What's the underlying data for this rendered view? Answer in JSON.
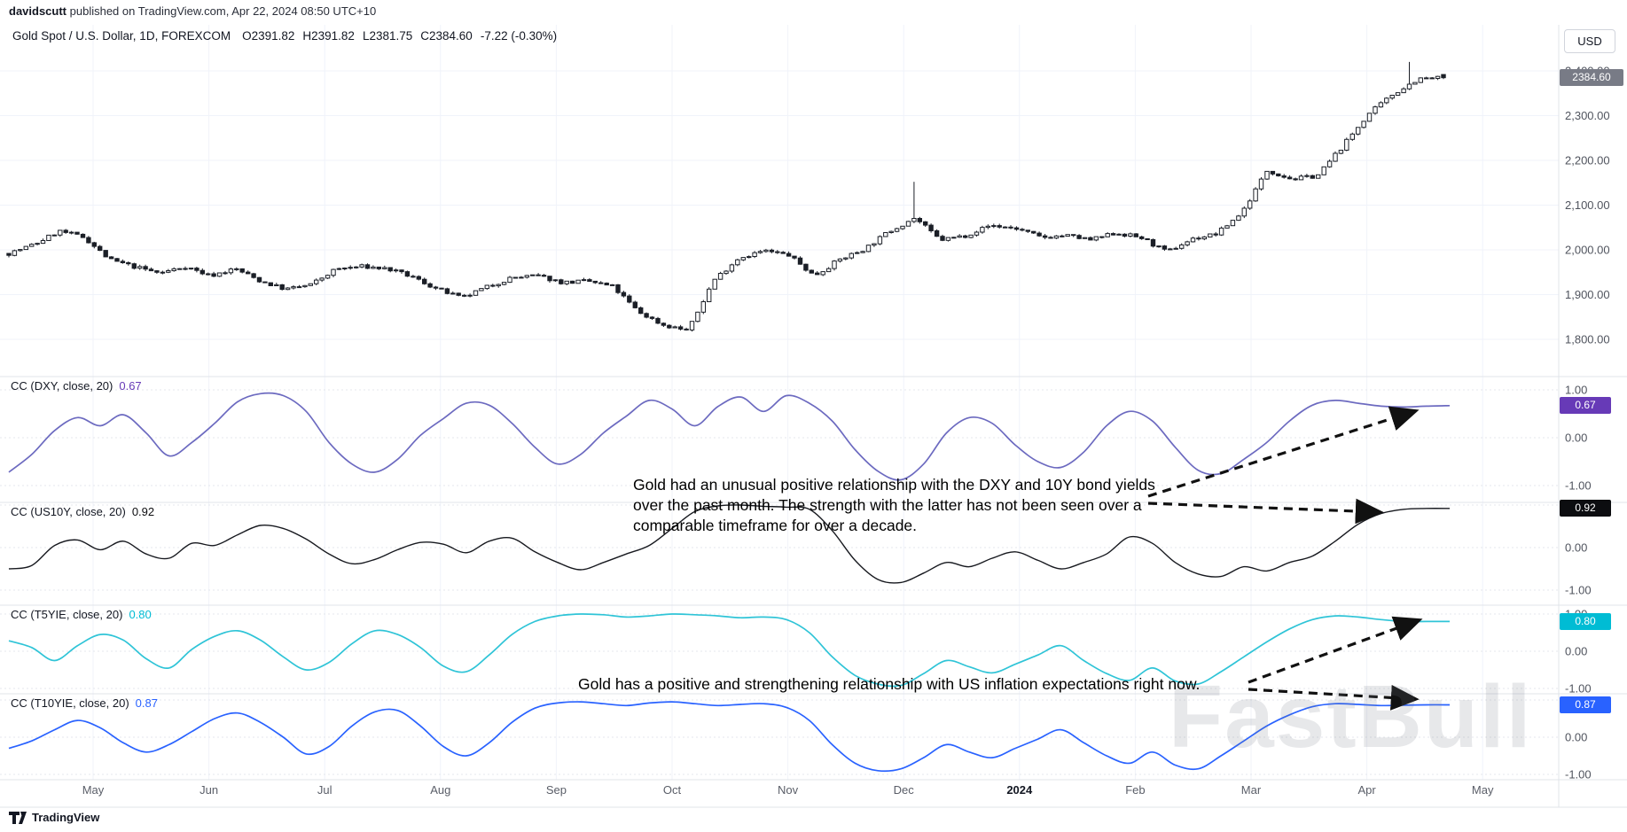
{
  "header": {
    "publisher": {
      "user": "davidscutt",
      "rest": " published on TradingView.com, Apr 22, 2024 08:50 UTC+10"
    },
    "symbol_line": {
      "symbol": "Gold Spot / U.S. Dollar, 1D, FOREXCOM",
      "parts": [
        "O2391.82",
        "H2391.82",
        "L2381.75",
        "C2384.60"
      ],
      "change": "-7.22 (-0.30%)"
    },
    "currency_button": "USD"
  },
  "price_axis": {
    "ticks": [
      {
        "label": "2,400.00",
        "value": 2400
      },
      {
        "label": "2,300.00",
        "value": 2300
      },
      {
        "label": "2,200.00",
        "value": 2200
      },
      {
        "label": "2,100.00",
        "value": 2100
      },
      {
        "label": "2,000.00",
        "value": 2000
      },
      {
        "label": "1,900.00",
        "value": 1900
      },
      {
        "label": "1,800.00",
        "value": 1800
      }
    ],
    "last_price": {
      "label": "2384.60",
      "value": 2384.6,
      "bg": "#787b86"
    }
  },
  "time_axis": {
    "labels": [
      "May",
      "Jun",
      "Jul",
      "Aug",
      "Sep",
      "Oct",
      "Nov",
      "Dec",
      "2024",
      "Feb",
      "Mar",
      "Apr",
      "May"
    ]
  },
  "annotations": [
    {
      "text": "Gold had an unusual positive relationship with the DXY and 10Y bond yields over the past month. The strength with the latter has not been seen over a comparable timeframe for over a decade."
    },
    {
      "text": "Gold has a positive and strengthening relationship with US inflation expectations right now."
    }
  ],
  "watermark": "FastBull",
  "footer": {
    "brand": "TradingView"
  },
  "chart_data": [
    {
      "type": "candlestick",
      "title": "Gold Spot / U.S. Dollar",
      "timeframe": "1D",
      "exchange": "FOREXCOM",
      "ohlc_last": {
        "open": 2391.82,
        "high": 2391.82,
        "low": 2381.75,
        "close": 2384.6,
        "change": -7.22,
        "change_pct": -0.3
      },
      "ylim": [
        1780,
        2480
      ],
      "y_ticks": [
        1800,
        1900,
        2000,
        2100,
        2200,
        2300,
        2400
      ],
      "x_labels": [
        "May",
        "Jun",
        "Jul",
        "Aug",
        "Sep",
        "Oct",
        "Nov",
        "Dec",
        "2024",
        "Feb",
        "Mar",
        "Apr",
        "May"
      ],
      "weekly_closes": [
        1992,
        2012,
        2042,
        2028,
        1978,
        1962,
        1948,
        1963,
        1942,
        1958,
        1930,
        1912,
        1922,
        1957,
        1963,
        1958,
        1940,
        1913,
        1892,
        1917,
        1938,
        1942,
        1927,
        1930,
        1918,
        1862,
        1832,
        1820,
        1932,
        1982,
        1998,
        1988,
        1942,
        1978,
        2002,
        2042,
        2072,
        2022,
        2032,
        2055,
        2048,
        2028,
        2032,
        2022,
        2038,
        2027,
        1995,
        2024,
        2036,
        2084,
        2178,
        2158,
        2166,
        2232,
        2302,
        2348,
        2382,
        2384.6
      ],
      "spikes": [
        {
          "frac": 0.632,
          "high": 2152
        },
        {
          "frac": 0.976,
          "high": 2420
        }
      ],
      "up_color": "#ffffff",
      "down_color": "#1b1f27",
      "border_color": "#1b1f27"
    },
    {
      "id": "dxy",
      "type": "line",
      "name": "CC (DXY, close, 20)",
      "current": 0.67,
      "current_label": "0.67",
      "color": "#6c6ac0",
      "badge_bg": "#673ab7",
      "ylim": [
        -1.3,
        1.3
      ],
      "scale_ticks": [
        {
          "label": "1.00",
          "value": 1
        },
        {
          "label": "0.00",
          "value": 0
        },
        {
          "label": "-1.00",
          "value": -1
        }
      ],
      "values": [
        -0.72,
        -0.35,
        0.15,
        0.42,
        0.25,
        0.48,
        0.1,
        -0.38,
        -0.1,
        0.3,
        0.75,
        0.92,
        0.88,
        0.55,
        -0.1,
        -0.55,
        -0.72,
        -0.45,
        0.05,
        0.4,
        0.72,
        0.68,
        0.3,
        -0.2,
        -0.55,
        -0.35,
        0.1,
        0.45,
        0.78,
        0.6,
        0.25,
        0.65,
        0.85,
        0.55,
        0.88,
        0.72,
        0.35,
        -0.25,
        -0.7,
        -0.88,
        -0.55,
        0.1,
        0.42,
        0.3,
        -0.15,
        -0.5,
        -0.62,
        -0.3,
        0.25,
        0.55,
        0.35,
        -0.2,
        -0.68,
        -0.75,
        -0.45,
        -0.1,
        0.35,
        0.68,
        0.78,
        0.72,
        0.66,
        0.64,
        0.66,
        0.67
      ]
    },
    {
      "id": "us10y",
      "type": "line",
      "name": "CC (US10Y, close, 20)",
      "current": 0.92,
      "current_label": "0.92",
      "color": "#17191f",
      "badge_bg": "#0c0d10",
      "ylim": [
        -1.3,
        1.3
      ],
      "scale_ticks": [
        {
          "label": "0.00",
          "value": 0
        },
        {
          "label": "-1.00",
          "value": -1
        }
      ],
      "values": [
        -0.5,
        -0.42,
        0.05,
        0.18,
        -0.05,
        0.15,
        -0.15,
        -0.25,
        0.1,
        0.05,
        0.3,
        0.52,
        0.45,
        0.2,
        -0.15,
        -0.38,
        -0.28,
        -0.05,
        0.12,
        0.08,
        -0.12,
        0.15,
        0.22,
        -0.1,
        -0.35,
        -0.52,
        -0.35,
        -0.15,
        0.05,
        0.45,
        0.85,
        0.98,
        1.0,
        0.97,
        0.95,
        0.9,
        0.4,
        -0.3,
        -0.75,
        -0.82,
        -0.6,
        -0.35,
        -0.45,
        -0.25,
        -0.1,
        -0.3,
        -0.5,
        -0.35,
        -0.15,
        0.25,
        0.1,
        -0.35,
        -0.62,
        -0.68,
        -0.45,
        -0.55,
        -0.35,
        -0.2,
        0.15,
        0.55,
        0.8,
        0.9,
        0.92,
        0.92
      ]
    },
    {
      "id": "t5yie",
      "type": "line",
      "name": "CC (T5YIE, close, 20)",
      "current": 0.8,
      "current_label": "0.80",
      "color": "#2fc4d7",
      "badge_bg": "#00bcd4",
      "ylim": [
        -1.3,
        1.3
      ],
      "scale_ticks": [
        {
          "label": "1.00",
          "value": 1
        },
        {
          "label": "0.00",
          "value": 0
        },
        {
          "label": "-1.00",
          "value": -1
        }
      ],
      "values": [
        0.28,
        0.1,
        -0.25,
        0.15,
        0.45,
        0.3,
        -0.2,
        -0.45,
        0.05,
        0.4,
        0.55,
        0.3,
        -0.15,
        -0.5,
        -0.3,
        0.2,
        0.55,
        0.45,
        0.1,
        -0.4,
        -0.55,
        -0.1,
        0.45,
        0.8,
        0.95,
        1.0,
        0.98,
        0.92,
        0.95,
        1.0,
        0.98,
        0.95,
        0.9,
        0.92,
        0.85,
        0.5,
        -0.15,
        -0.65,
        -0.88,
        -0.92,
        -0.6,
        -0.25,
        -0.42,
        -0.58,
        -0.35,
        -0.1,
        0.15,
        -0.25,
        -0.6,
        -0.78,
        -0.45,
        -0.8,
        -0.88,
        -0.55,
        -0.15,
        0.25,
        0.6,
        0.85,
        0.95,
        0.92,
        0.85,
        0.8,
        0.8,
        0.8
      ]
    },
    {
      "id": "t10yie",
      "type": "line",
      "name": "CC (T10YIE, close, 20)",
      "current": 0.87,
      "current_label": "0.87",
      "color": "#2962ff",
      "badge_bg": "#2962ff",
      "ylim": [
        -1.3,
        1.3
      ],
      "scale_ticks": [
        {
          "label": "0.00",
          "value": 0
        },
        {
          "label": "-1.00",
          "value": -1
        }
      ],
      "values": [
        -0.3,
        -0.1,
        0.2,
        0.45,
        0.25,
        -0.15,
        -0.4,
        -0.2,
        0.15,
        0.5,
        0.65,
        0.4,
        0.0,
        -0.45,
        -0.25,
        0.3,
        0.68,
        0.72,
        0.3,
        -0.25,
        -0.5,
        -0.15,
        0.4,
        0.78,
        0.92,
        0.95,
        0.9,
        0.85,
        0.92,
        0.95,
        0.9,
        0.85,
        0.88,
        0.9,
        0.8,
        0.45,
        -0.2,
        -0.7,
        -0.9,
        -0.85,
        -0.55,
        -0.2,
        -0.4,
        -0.55,
        -0.3,
        -0.05,
        0.2,
        -0.15,
        -0.5,
        -0.7,
        -0.4,
        -0.75,
        -0.85,
        -0.5,
        -0.1,
        0.3,
        0.6,
        0.82,
        0.9,
        0.88,
        0.85,
        0.86,
        0.87,
        0.87
      ]
    }
  ]
}
